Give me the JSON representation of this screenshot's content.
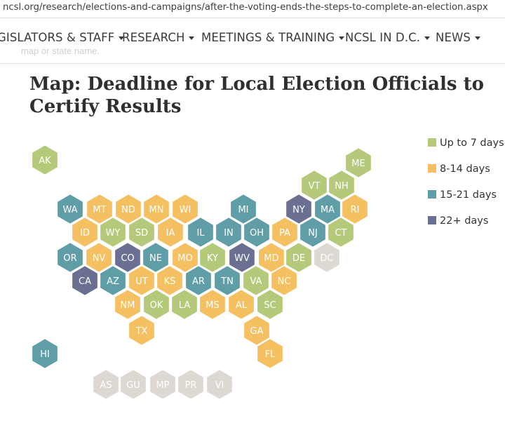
{
  "browser": {
    "url": "ncsl.org/research/elections-and-campaigns/after-the-voting-ends-the-steps-to-complete-an-election.aspx"
  },
  "nav": {
    "items": [
      {
        "label": "GISLATORS & STAFF"
      },
      {
        "label": "RESEARCH"
      },
      {
        "label": "MEETINGS & TRAINING"
      },
      {
        "label": "NCSL IN D.C."
      },
      {
        "label": "NEWS"
      }
    ],
    "ghost_text": "map or state name."
  },
  "page": {
    "title": "Map: Deadline for Local Election Officials to Certify Results"
  },
  "legend": [
    {
      "category": "le7",
      "label": "Up to 7 days",
      "color": "#b5c97a"
    },
    {
      "category": "8to14",
      "label": "8-14 days",
      "color": "#f4c062"
    },
    {
      "category": "15to21",
      "label": "15-21 days",
      "color": "#5f9ea6"
    },
    {
      "category": "22plus",
      "label": "22+ days",
      "color": "#6b6f91"
    }
  ],
  "na_color": "#ddd8d1",
  "states": [
    {
      "abbr": "AK",
      "cat": "le7"
    },
    {
      "abbr": "ME",
      "cat": "le7"
    },
    {
      "abbr": "VT",
      "cat": "le7"
    },
    {
      "abbr": "NH",
      "cat": "le7"
    },
    {
      "abbr": "WA",
      "cat": "15to21"
    },
    {
      "abbr": "MT",
      "cat": "8to14"
    },
    {
      "abbr": "ND",
      "cat": "8to14"
    },
    {
      "abbr": "MN",
      "cat": "8to14"
    },
    {
      "abbr": "WI",
      "cat": "8to14"
    },
    {
      "abbr": "MI",
      "cat": "15to21"
    },
    {
      "abbr": "NY",
      "cat": "22plus"
    },
    {
      "abbr": "MA",
      "cat": "15to21"
    },
    {
      "abbr": "RI",
      "cat": "8to14"
    },
    {
      "abbr": "ID",
      "cat": "8to14"
    },
    {
      "abbr": "WY",
      "cat": "le7"
    },
    {
      "abbr": "SD",
      "cat": "le7"
    },
    {
      "abbr": "IA",
      "cat": "8to14"
    },
    {
      "abbr": "IL",
      "cat": "15to21"
    },
    {
      "abbr": "IN",
      "cat": "15to21"
    },
    {
      "abbr": "OH",
      "cat": "15to21"
    },
    {
      "abbr": "PA",
      "cat": "8to14"
    },
    {
      "abbr": "NJ",
      "cat": "15to21"
    },
    {
      "abbr": "CT",
      "cat": "le7"
    },
    {
      "abbr": "OR",
      "cat": "15to21"
    },
    {
      "abbr": "NV",
      "cat": "8to14"
    },
    {
      "abbr": "CO",
      "cat": "22plus"
    },
    {
      "abbr": "NE",
      "cat": "15to21"
    },
    {
      "abbr": "MO",
      "cat": "8to14"
    },
    {
      "abbr": "KY",
      "cat": "le7"
    },
    {
      "abbr": "WV",
      "cat": "22plus"
    },
    {
      "abbr": "MD",
      "cat": "8to14"
    },
    {
      "abbr": "DE",
      "cat": "le7"
    },
    {
      "abbr": "DC",
      "cat": "na"
    },
    {
      "abbr": "CA",
      "cat": "22plus"
    },
    {
      "abbr": "AZ",
      "cat": "15to21"
    },
    {
      "abbr": "UT",
      "cat": "8to14"
    },
    {
      "abbr": "KS",
      "cat": "8to14"
    },
    {
      "abbr": "AR",
      "cat": "15to21"
    },
    {
      "abbr": "TN",
      "cat": "15to21"
    },
    {
      "abbr": "VA",
      "cat": "le7"
    },
    {
      "abbr": "NC",
      "cat": "8to14"
    },
    {
      "abbr": "NM",
      "cat": "8to14"
    },
    {
      "abbr": "OK",
      "cat": "le7"
    },
    {
      "abbr": "LA",
      "cat": "le7"
    },
    {
      "abbr": "MS",
      "cat": "8to14"
    },
    {
      "abbr": "AL",
      "cat": "8to14"
    },
    {
      "abbr": "SC",
      "cat": "le7"
    },
    {
      "abbr": "TX",
      "cat": "8to14"
    },
    {
      "abbr": "GA",
      "cat": "8to14"
    },
    {
      "abbr": "HI",
      "cat": "15to21"
    },
    {
      "abbr": "FL",
      "cat": "8to14"
    },
    {
      "abbr": "AS",
      "cat": "na"
    },
    {
      "abbr": "GU",
      "cat": "na"
    },
    {
      "abbr": "MP",
      "cat": "na"
    },
    {
      "abbr": "PR",
      "cat": "na"
    },
    {
      "abbr": "VI",
      "cat": "na"
    }
  ]
}
